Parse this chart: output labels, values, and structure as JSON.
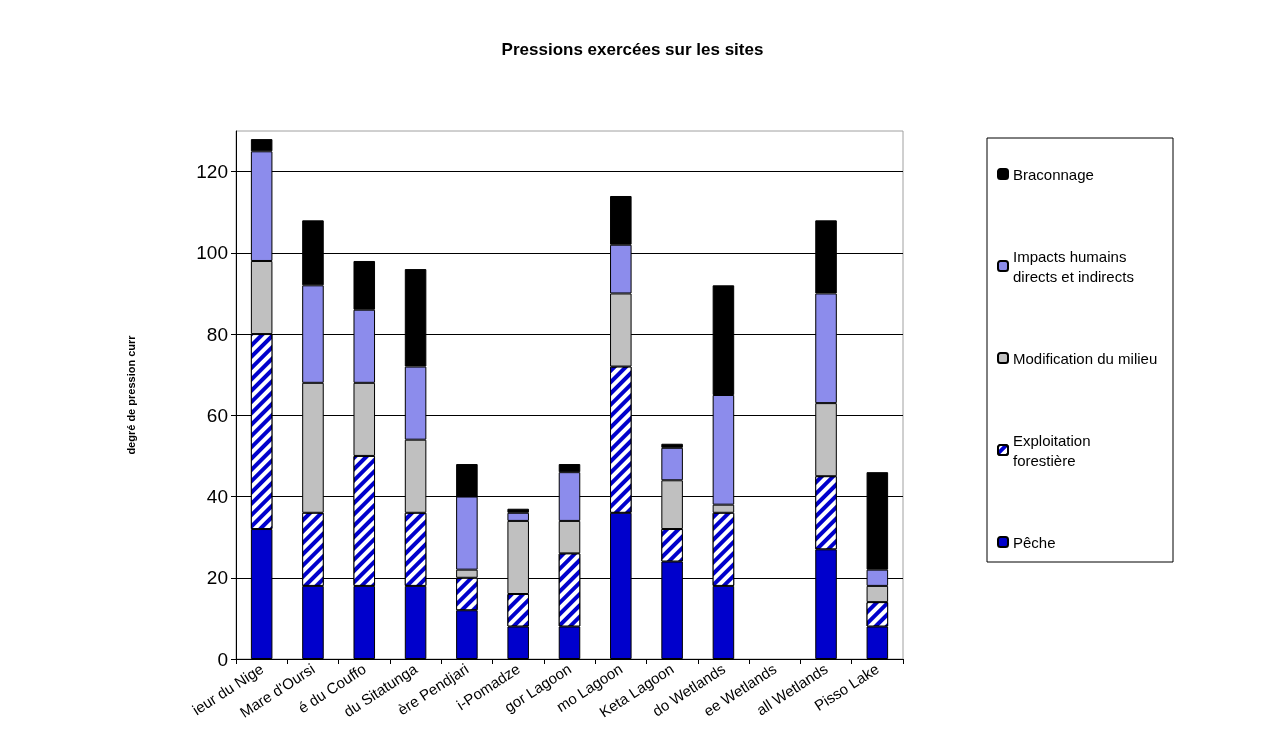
{
  "chart_data": {
    "type": "bar",
    "stacked": true,
    "title": "Pressions exercées sur les sites",
    "ylabel": "degré de pression curr",
    "categories": [
      "ieur du Nige",
      "Mare d'Oursi",
      "é du Couffo",
      "du Sitatunga",
      "ère Pendjari",
      "i-Pomadze",
      "gor Lagoon",
      "mo Lagoon",
      "Keta Lagoon",
      "do Wetlands",
      "ee Wetlands",
      "all Wetlands",
      "Pisso Lake"
    ],
    "series": [
      {
        "name": "Pêche",
        "color": "#0000cc",
        "values": [
          32,
          18,
          18,
          18,
          12,
          8,
          8,
          36,
          24,
          18,
          null,
          27,
          8
        ]
      },
      {
        "name": "Exploitation forestière",
        "color": "#0000cc",
        "values": [
          48,
          18,
          32,
          18,
          8,
          8,
          18,
          36,
          8,
          18,
          null,
          18,
          6
        ]
      },
      {
        "name": "Modification du milieu",
        "color": "#c0c0c0",
        "values": [
          18,
          32,
          18,
          18,
          2,
          18,
          8,
          18,
          12,
          2,
          null,
          18,
          4
        ]
      },
      {
        "name": "Impacts humains directs et indirects",
        "color": "#8c8cec",
        "values": [
          27,
          24,
          18,
          18,
          18,
          2,
          12,
          12,
          8,
          27,
          null,
          27,
          4
        ]
      },
      {
        "name": "Braconnage",
        "color": "#000000",
        "values": [
          3,
          16,
          12,
          24,
          8,
          1,
          2,
          12,
          1,
          27,
          null,
          18,
          24
        ]
      }
    ],
    "ylim": [
      0,
      130
    ],
    "yticks": [
      0,
      20,
      40,
      60,
      80,
      100,
      120
    ],
    "grid": "y",
    "legend": "right"
  }
}
